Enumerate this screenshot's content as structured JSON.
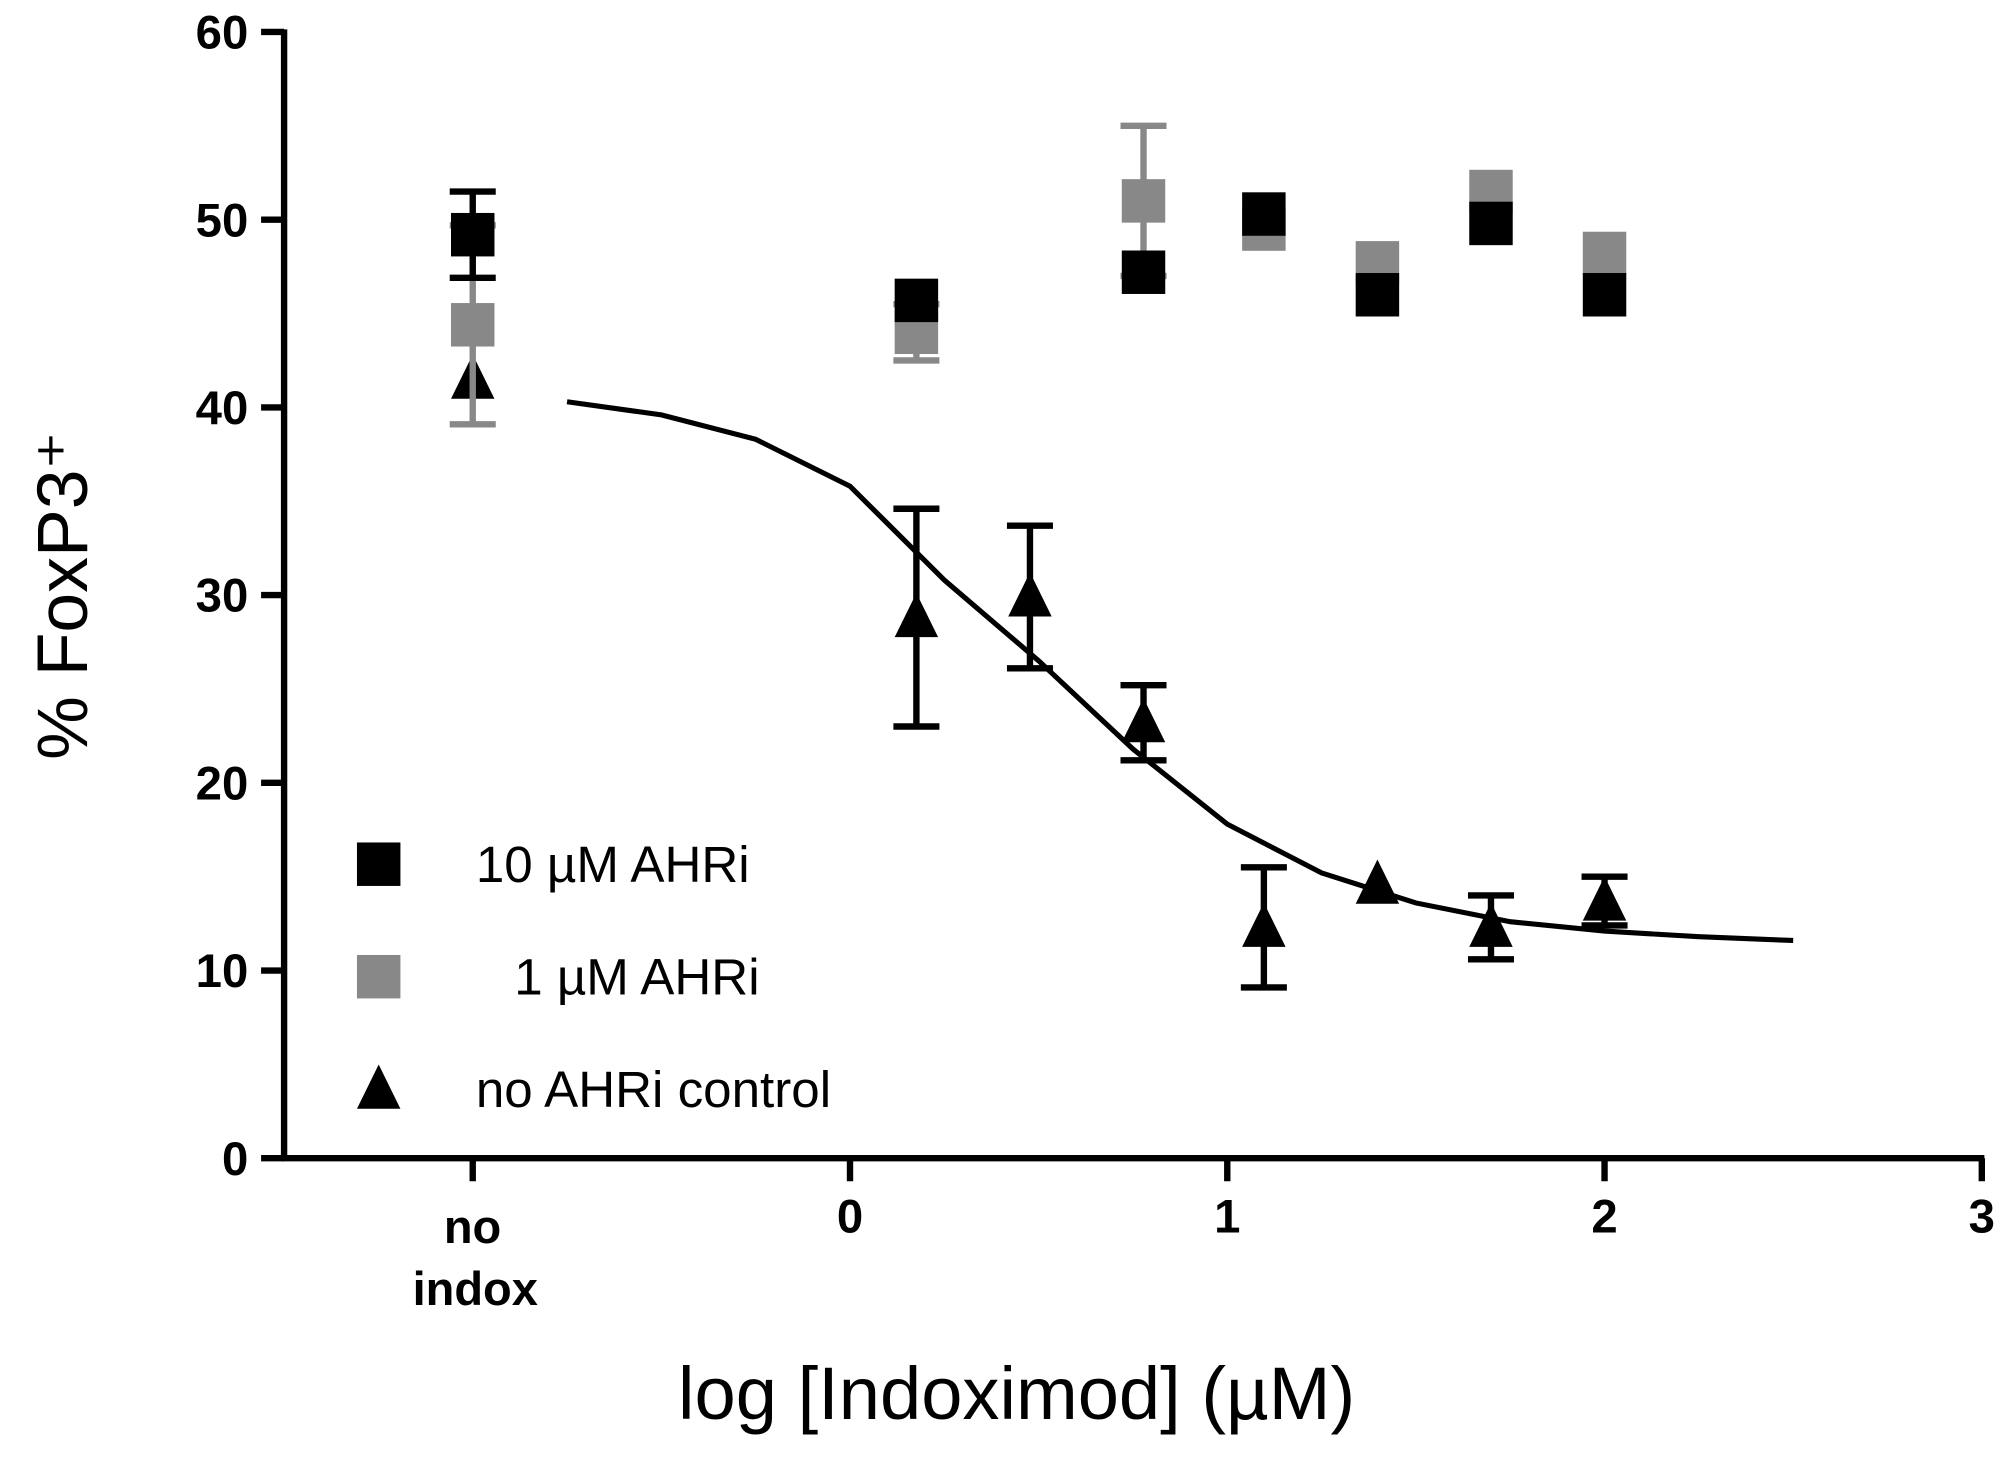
{
  "chart_data": {
    "type": "scatter",
    "xlabel": "log [Indoximod] (µM)",
    "ylabel": "% FoxP3⁺",
    "xlim": [
      -1.5,
      3
    ],
    "xticks": [
      {
        "value": -1,
        "label": "no indox"
      },
      0,
      1,
      2,
      3
    ],
    "ylim": [
      0,
      60
    ],
    "yticks": [
      0,
      10,
      20,
      30,
      40,
      50,
      60
    ],
    "legend": "lower left",
    "x": [
      -1,
      0.176,
      0.477,
      0.778,
      1.097,
      1.398,
      1.699,
      2
    ],
    "series": [
      {
        "name": "no AHRi control",
        "color": "#000000",
        "marker": "triangle",
        "values": [
          41.5,
          28.8,
          29.9,
          23.2,
          12.3,
          14.6,
          12.3,
          13.7
        ],
        "errors": [
          null,
          5.8,
          3.8,
          2.0,
          3.2,
          null,
          1.7,
          1.3
        ]
      },
      {
        "name": "1 µM AHRi",
        "color": "#888888",
        "marker": "square",
        "values": [
          44.4,
          44.0,
          null,
          51.0,
          49.5,
          47.7,
          51.5,
          48.2
        ],
        "errors": [
          5.3,
          1.5,
          null,
          4.0,
          null,
          null,
          null,
          null
        ]
      },
      {
        "name": "10 µM AHRi",
        "color": "#000000",
        "marker": "square",
        "values": [
          49.2,
          45.7,
          null,
          47.2,
          50.3,
          46.0,
          49.8,
          46.0
        ],
        "errors": [
          2.3,
          null,
          null,
          null,
          null,
          null,
          null,
          null
        ]
      }
    ],
    "fit": {
      "color": "#000000",
      "x": [
        -0.75,
        -0.5,
        -0.25,
        0,
        0.25,
        0.5,
        0.75,
        1,
        1.25,
        1.5,
        1.75,
        2,
        2.25,
        2.5
      ],
      "values": [
        40.3,
        39.6,
        38.3,
        35.8,
        30.8,
        26.5,
        21.8,
        17.8,
        15.2,
        13.6,
        12.6,
        12.1,
        11.8,
        11.6
      ]
    }
  }
}
